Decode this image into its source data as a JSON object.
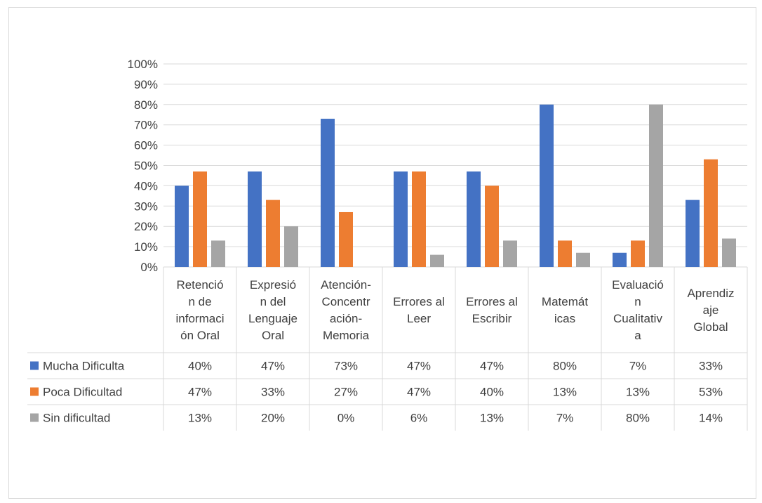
{
  "chart_data": {
    "type": "bar",
    "title": "",
    "xlabel": "",
    "ylabel": "",
    "ylim": [
      0,
      100
    ],
    "yticks": [
      "0%",
      "10%",
      "20%",
      "30%",
      "40%",
      "50%",
      "60%",
      "70%",
      "80%",
      "90%",
      "100%"
    ],
    "grid": true,
    "legend": "data-table",
    "categories": [
      [
        "Retenció",
        "n de",
        "informaci",
        "ón Oral"
      ],
      [
        "Expresió",
        "n del",
        "Lenguaje",
        "Oral"
      ],
      [
        "Atención-",
        "Concentr",
        "ación-",
        "Memoria"
      ],
      [
        "Errores al",
        "Leer"
      ],
      [
        "Errores al",
        "Escribir"
      ],
      [
        "Matemát",
        "icas"
      ],
      [
        "Evaluació",
        "n",
        "Cualitativ",
        "a"
      ],
      [
        "Aprendiz",
        "aje",
        "Global"
      ]
    ],
    "series": [
      {
        "name": "Mucha Dificulta",
        "color": "#4472c4",
        "values": [
          40,
          47,
          73,
          47,
          47,
          80,
          7,
          33
        ],
        "labels": [
          "40%",
          "47%",
          "73%",
          "47%",
          "47%",
          "80%",
          "7%",
          "33%"
        ]
      },
      {
        "name": "Poca Dificultad",
        "color": "#ed7d31",
        "values": [
          47,
          33,
          27,
          47,
          40,
          13,
          13,
          53
        ],
        "labels": [
          "47%",
          "33%",
          "27%",
          "47%",
          "40%",
          "13%",
          "13%",
          "53%"
        ]
      },
      {
        "name": "Sin dificultad",
        "color": "#a5a5a5",
        "values": [
          13,
          20,
          0,
          6,
          13,
          7,
          80,
          14
        ],
        "labels": [
          "13%",
          "20%",
          "0%",
          "6%",
          "13%",
          "7%",
          "80%",
          "14%"
        ]
      }
    ]
  }
}
